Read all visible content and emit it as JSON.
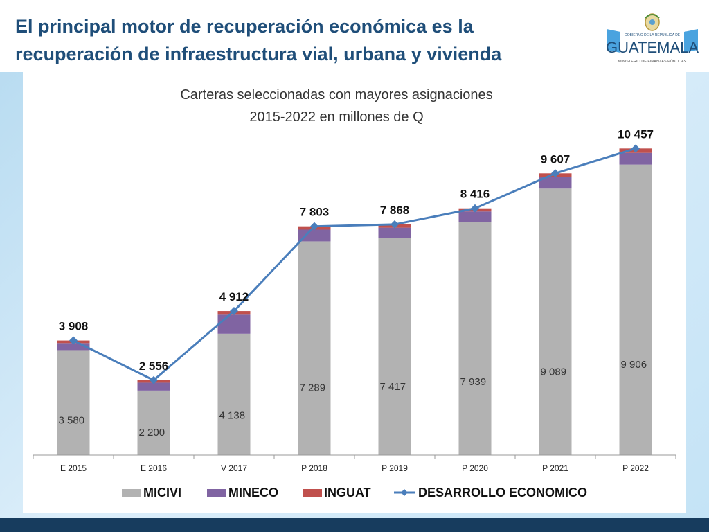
{
  "slide": {
    "title_line1": "El principal motor de recuperación económica es la",
    "title_line2": "recuperación de infraestructura vial, urbana y vivienda"
  },
  "logo": {
    "top_text": "GOBIERNO DE LA REPÚBLICA DE",
    "main_text": "GUATEMALA",
    "sub_text": "MINISTERIO DE FINANZAS PÚBLICAS"
  },
  "colors": {
    "micivi": "#b2b2b2",
    "mineco": "#8064a2",
    "inguat": "#c0504d",
    "line": "#4a7ebb",
    "title": "#1f4e79"
  },
  "chart_data": {
    "type": "bar",
    "stacked": true,
    "title_line1": "Carteras seleccionadas con mayores asignaciones",
    "title_line2": "2015-2022 en millones de Q",
    "categories": [
      "E 2015",
      "E 2016",
      "V 2017",
      "P 2018",
      "P 2019",
      "P 2020",
      "P 2021",
      "P 2022"
    ],
    "series": [
      {
        "name": "MICIVI",
        "values": [
          3580,
          2200,
          4138,
          7289,
          7417,
          7939,
          9089,
          9906
        ],
        "labels": [
          "3 580",
          "2 200",
          "4 138",
          "7 289",
          "7 417",
          "7 939",
          "9 089",
          "9 906"
        ]
      },
      {
        "name": "MINECO",
        "values": [
          240,
          270,
          650,
          400,
          340,
          370,
          400,
          400
        ]
      },
      {
        "name": "INGUAT",
        "values": [
          88,
          86,
          124,
          114,
          111,
          107,
          118,
          151
        ]
      }
    ],
    "line_series": {
      "name": "DESARROLLO ECONOMICO",
      "values": [
        3908,
        2556,
        4912,
        7803,
        7868,
        8416,
        9607,
        10457
      ],
      "labels": [
        "3 908",
        "2 556",
        "4 912",
        "7 803",
        "7 868",
        "8 416",
        "9 607",
        "10 457"
      ]
    },
    "ylim": [
      0,
      12000
    ],
    "grid": false,
    "legend_position": "bottom"
  }
}
